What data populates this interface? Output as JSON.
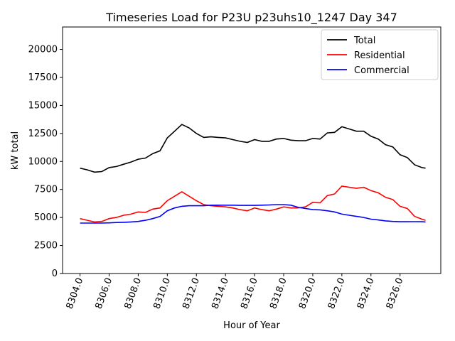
{
  "chart_data": {
    "type": "line",
    "title": "Timeseries Load for P23U p23uhs10_1247  Day 347",
    "xlabel": "Hour of Year",
    "ylabel": "kW total",
    "xlim": [
      8302.8,
      8328.8
    ],
    "ylim": [
      0,
      22000
    ],
    "xticks": [
      8304,
      8306,
      8308,
      8310,
      8312,
      8314,
      8316,
      8318,
      8320,
      8322,
      8324,
      8326
    ],
    "xtick_labels": [
      "8304.0",
      "8306.0",
      "8308.0",
      "8310.0",
      "8312.0",
      "8314.0",
      "8316.0",
      "8318.0",
      "8320.0",
      "8322.0",
      "8324.0",
      "8326.0"
    ],
    "yticks": [
      0,
      2500,
      5000,
      7500,
      10000,
      12500,
      15000,
      17500,
      20000
    ],
    "ytick_labels": [
      "0",
      "2500",
      "5000",
      "7500",
      "10000",
      "12500",
      "15000",
      "17500",
      "20000"
    ],
    "legend": "top-right",
    "x": [
      8304,
      8304.5,
      8305,
      8305.5,
      8306,
      8306.5,
      8307,
      8307.5,
      8308,
      8308.5,
      8309,
      8309.5,
      8310,
      8310.5,
      8311,
      8311.5,
      8312,
      8312.5,
      8313,
      8313.5,
      8314,
      8314.5,
      8315,
      8315.5,
      8316,
      8316.5,
      8317,
      8317.5,
      8318,
      8318.5,
      8319,
      8319.5,
      8320,
      8320.5,
      8321,
      8321.5,
      8322,
      8322.5,
      8323,
      8323.5,
      8324,
      8324.5,
      8325,
      8325.5,
      8326,
      8326.5,
      8327,
      8327.5,
      8327.75
    ],
    "series": [
      {
        "name": "Total",
        "color": "#000000",
        "values": [
          9400,
          9250,
          9050,
          9100,
          9450,
          9550,
          9750,
          9950,
          10200,
          10300,
          10700,
          10950,
          12100,
          12700,
          13300,
          13000,
          12500,
          12150,
          12200,
          12150,
          12100,
          11950,
          11800,
          11700,
          11950,
          11800,
          11800,
          12000,
          12050,
          11900,
          11850,
          11850,
          12050,
          12000,
          12550,
          12600,
          13100,
          12900,
          12700,
          12700,
          12250,
          12000,
          11500,
          11300,
          10600,
          10350,
          9700,
          9450,
          9400
        ]
      },
      {
        "name": "Residential",
        "color": "#ff0000",
        "values": [
          4900,
          4750,
          4600,
          4650,
          4900,
          5000,
          5200,
          5300,
          5500,
          5450,
          5750,
          5850,
          6500,
          6900,
          7300,
          6900,
          6500,
          6150,
          6050,
          6000,
          5950,
          5850,
          5700,
          5600,
          5850,
          5700,
          5600,
          5750,
          5950,
          5850,
          5850,
          5950,
          6350,
          6300,
          6950,
          7100,
          7800,
          7700,
          7600,
          7700,
          7400,
          7200,
          6800,
          6600,
          6000,
          5800,
          5100,
          4850,
          4750
        ]
      },
      {
        "name": "Commercial",
        "color": "#0000ff",
        "values": [
          4500,
          4500,
          4500,
          4500,
          4520,
          4550,
          4570,
          4600,
          4650,
          4750,
          4900,
          5100,
          5600,
          5850,
          6000,
          6050,
          6050,
          6050,
          6100,
          6100,
          6100,
          6100,
          6080,
          6080,
          6080,
          6100,
          6120,
          6150,
          6150,
          6100,
          5900,
          5800,
          5700,
          5680,
          5600,
          5500,
          5300,
          5200,
          5100,
          5000,
          4850,
          4780,
          4700,
          4650,
          4620,
          4620,
          4630,
          4620,
          4600
        ]
      }
    ]
  }
}
